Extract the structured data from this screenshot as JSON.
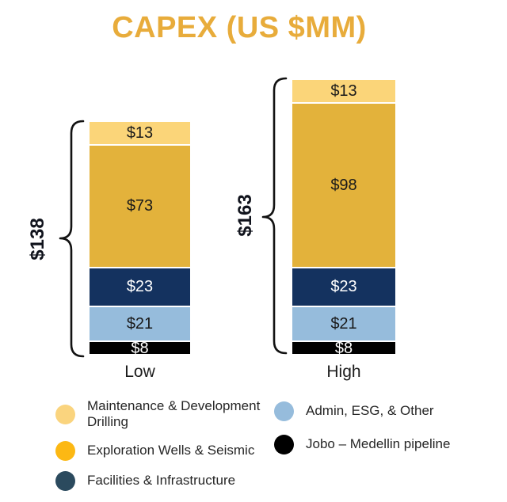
{
  "chart_data": {
    "type": "stacked-bar",
    "title": "CAPEX (US $MM)",
    "title_color": "#E8AC3B",
    "categories": [
      "Low",
      "High"
    ],
    "totals": [
      138,
      163
    ],
    "total_labels": [
      "$138",
      "$163"
    ],
    "value_prefix": "$",
    "stack_order_top_to_bottom": true,
    "series": [
      {
        "name": "Maintenance & Development Drilling",
        "color": "#FBD579",
        "text_color": "#1a1a1a",
        "values": [
          13,
          13
        ],
        "value_labels": [
          "$13",
          "$13"
        ]
      },
      {
        "name": "Exploration Wells & Seismic",
        "color": "#E3B23B",
        "text_color": "#1a1a1a",
        "values": [
          73,
          98
        ],
        "value_labels": [
          "$73",
          "$98"
        ]
      },
      {
        "name": "Facilities & Infrastructure",
        "color": "#14325F",
        "text_color": "#ffffff",
        "values": [
          23,
          23
        ],
        "value_labels": [
          "$23",
          "$23"
        ]
      },
      {
        "name": "Admin, ESG, & Other",
        "color": "#96BCDC",
        "text_color": "#1a1a1a",
        "values": [
          21,
          21
        ],
        "value_labels": [
          "$21",
          "$21"
        ]
      },
      {
        "name": "Jobo – Medellin pipeline",
        "color": "#000000",
        "text_color": "#ffffff",
        "values": [
          8,
          8
        ],
        "value_labels": [
          "$8",
          "$8"
        ]
      }
    ],
    "legend_position": "bottom"
  },
  "legend": {
    "columns": [
      [
        {
          "label": "Maintenance & Development Drilling",
          "color": "#FAD47E"
        },
        {
          "label": "Exploration Wells & Seismic",
          "color": "#FCB813"
        },
        {
          "label": "Facilities & Infrastructure",
          "color": "#2B4A5E"
        }
      ],
      [
        {
          "label": "Admin, ESG, & Other",
          "color": "#96BCDC"
        },
        {
          "label": "Jobo – Medellin pipeline",
          "color": "#000000"
        }
      ]
    ]
  }
}
